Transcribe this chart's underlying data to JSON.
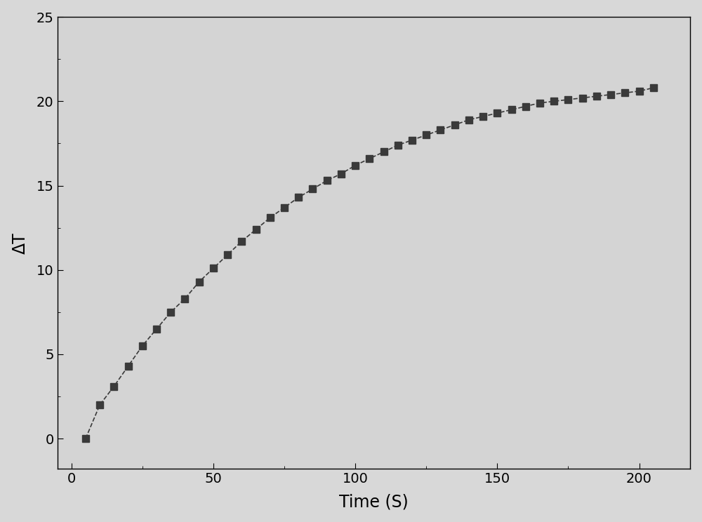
{
  "time": [
    5,
    10,
    15,
    20,
    25,
    30,
    35,
    40,
    45,
    50,
    55,
    60,
    65,
    70,
    75,
    80,
    85,
    90,
    95,
    100,
    105,
    110,
    115,
    120,
    125,
    130,
    135,
    140,
    145,
    150,
    155,
    160,
    165,
    170,
    175,
    180,
    185,
    190,
    195,
    200,
    205
  ],
  "delta_T": [
    0.0,
    2.0,
    3.1,
    4.3,
    5.5,
    6.5,
    7.5,
    8.3,
    9.3,
    10.1,
    10.9,
    11.7,
    12.4,
    13.1,
    13.7,
    14.3,
    14.8,
    15.3,
    15.7,
    16.2,
    16.6,
    17.0,
    17.4,
    17.7,
    18.0,
    18.3,
    18.6,
    18.9,
    19.1,
    19.3,
    19.5,
    19.7,
    19.9,
    20.0,
    20.1,
    20.2,
    20.3,
    20.4,
    20.5,
    20.6,
    20.8
  ],
  "marker": "s",
  "marker_color": "#3a3a3a",
  "line_color": "#3a3a3a",
  "line_style": "--",
  "marker_size": 7,
  "xlabel": "Time (S)",
  "ylabel": "ΔT",
  "xlim": [
    -5,
    218
  ],
  "ylim": [
    -1.8,
    25
  ],
  "xticks": [
    0,
    50,
    100,
    150,
    200
  ],
  "yticks": [
    0,
    5,
    10,
    15,
    20,
    25
  ],
  "background_color": "#d8d8d8",
  "plot_background_color": "#d4d4d4",
  "xlabel_fontsize": 17,
  "ylabel_fontsize": 17,
  "tick_fontsize": 14,
  "line_width": 1.2,
  "spine_color": "#000000"
}
